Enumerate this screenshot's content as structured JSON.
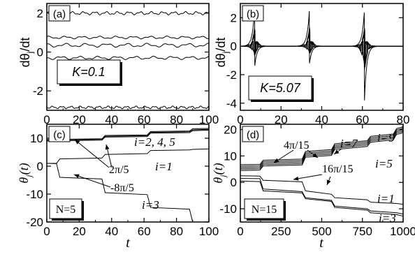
{
  "chart_data": [
    {
      "type": "line",
      "panel_label": "(a)",
      "ylabel": "dθ_j/dt",
      "xlabel": "",
      "xlim": [
        0,
        100
      ],
      "ylim": [
        -3,
        2.5
      ],
      "xticks": [
        0,
        20,
        40,
        60,
        80,
        100
      ],
      "yticks": [
        -2,
        0,
        2
      ],
      "series": [
        {
          "base": 2.0,
          "amp": 0.06,
          "freq": 0.9
        },
        {
          "base": 0.75,
          "amp": 0.05,
          "freq": 0.6
        },
        {
          "base": 0.35,
          "amp": 0.07,
          "freq": 0.5
        },
        {
          "base": -0.3,
          "amp": 0.06,
          "freq": 0.55
        },
        {
          "base": -2.85,
          "amp": 0.05,
          "freq": 1.1
        }
      ],
      "annotation": "K=0.1",
      "grid": false
    },
    {
      "type": "line",
      "panel_label": "(b)",
      "ylabel": "dθ_j/dt",
      "xlabel": "",
      "xlim": [
        0,
        80
      ],
      "ylim": [
        -4.5,
        3.0
      ],
      "xticks": [
        0,
        20,
        40,
        60,
        80
      ],
      "yticks": [
        -4,
        -2,
        0,
        2
      ],
      "spike_times": [
        7,
        34,
        61
      ],
      "spike_max": [
        2.6,
        2.7,
        2.6
      ],
      "spike_min": [
        -1.5,
        -1.2,
        -3.8
      ],
      "annotation": "K=5.07",
      "grid": false
    },
    {
      "type": "line",
      "panel_label": "(c)",
      "ylabel": "θ_j(t)",
      "xlabel": "t",
      "xlim": [
        0,
        100
      ],
      "ylim": [
        -20,
        15
      ],
      "xticks": [
        0,
        20,
        40,
        60,
        80,
        100
      ],
      "yticks": [
        -20,
        -10,
        0,
        10
      ],
      "series": [
        {
          "points": [
            [
              0,
              9.5
            ],
            [
              8,
              9.6
            ],
            [
              34,
              9.8
            ],
            [
              36,
              11.0
            ],
            [
              62,
              11.2
            ],
            [
              64,
              12.4
            ],
            [
              88,
              12.6
            ],
            [
              90,
              13.4
            ],
            [
              100,
              13.5
            ]
          ]
        },
        {
          "points": [
            [
              0,
              9.3
            ],
            [
              8,
              9.4
            ],
            [
              34,
              9.6
            ],
            [
              36,
              10.7
            ],
            [
              62,
              10.9
            ],
            [
              64,
              12.1
            ],
            [
              88,
              12.3
            ],
            [
              90,
              13.0
            ],
            [
              100,
              13.2
            ]
          ]
        },
        {
          "points": [
            [
              0,
              9.0
            ],
            [
              8,
              9.1
            ],
            [
              34,
              9.3
            ],
            [
              36,
              10.4
            ],
            [
              62,
              10.6
            ],
            [
              64,
              11.8
            ],
            [
              88,
              12.0
            ],
            [
              90,
              12.7
            ],
            [
              100,
              12.9
            ]
          ]
        },
        {
          "points": [
            [
              0,
              1.0
            ],
            [
              6,
              1.0
            ],
            [
              8,
              2.6
            ],
            [
              34,
              2.9
            ],
            [
              36,
              4.2
            ],
            [
              62,
              4.5
            ],
            [
              64,
              5.6
            ],
            [
              88,
              5.8
            ],
            [
              90,
              6.0
            ],
            [
              100,
              6.2
            ]
          ]
        },
        {
          "points": [
            [
              0,
              1.0
            ],
            [
              6,
              0.9
            ],
            [
              8,
              -4.0
            ],
            [
              34,
              -4.6
            ],
            [
              36,
              -9.5
            ],
            [
              62,
              -10.2
            ],
            [
              64,
              -14.8
            ],
            [
              88,
              -15.4
            ],
            [
              90,
              -20
            ],
            [
              100,
              -20
            ]
          ]
        }
      ],
      "annotations": [
        "i=2, 4, 5",
        "2π/5",
        "i=1",
        "-8π/5",
        "i=3",
        "N=5"
      ],
      "grid": false
    },
    {
      "type": "line",
      "panel_label": "(d)",
      "ylabel": "θ_j(t)",
      "xlabel": "t",
      "xlim": [
        0,
        1000
      ],
      "ylim": [
        -15,
        22
      ],
      "xticks": [
        0,
        250,
        500,
        750,
        1000
      ],
      "yticks": [
        -10,
        0,
        10,
        20
      ],
      "annotations": [
        "4π/15",
        "i=7",
        "i=9",
        "i=5",
        "16π/15",
        "i=1",
        "i=3",
        "N=15"
      ],
      "grid": false
    }
  ]
}
